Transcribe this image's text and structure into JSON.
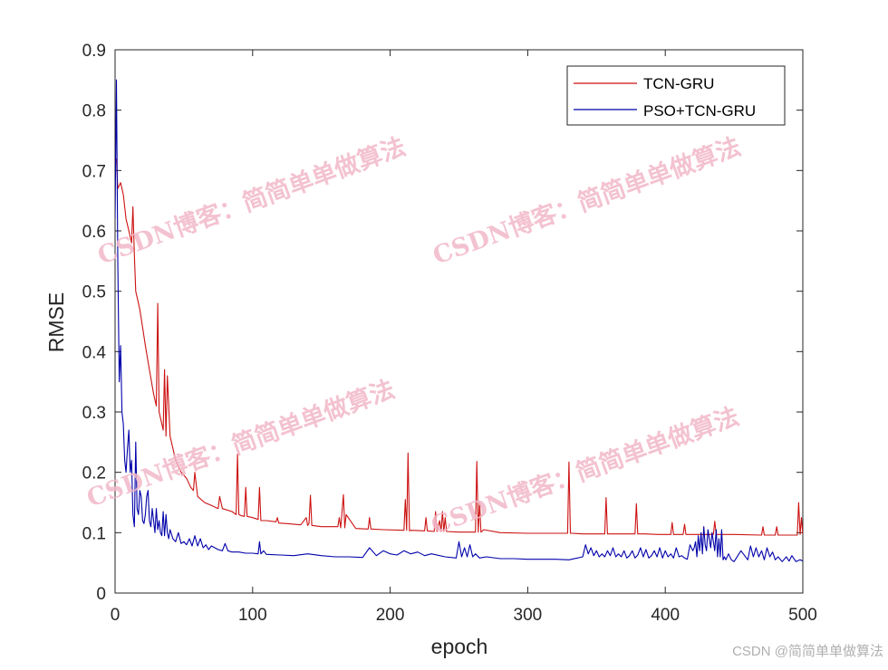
{
  "chart_data": {
    "type": "line",
    "xlabel": "epoch",
    "ylabel": "RMSE",
    "xlim": [
      0,
      500
    ],
    "ylim": [
      0,
      0.9
    ],
    "xticks": [
      0,
      100,
      200,
      300,
      400,
      500
    ],
    "yticks": [
      0,
      0.1,
      0.2,
      0.3,
      0.4,
      0.5,
      0.6,
      0.7,
      0.8,
      0.9
    ],
    "grid": false,
    "legend_position": "top-right",
    "series": [
      {
        "name": "TCN-GRU",
        "color": "#cc1111",
        "x": [
          1,
          2,
          4,
          6,
          8,
          10,
          12,
          13,
          14,
          15,
          16,
          18,
          20,
          22,
          25,
          28,
          30,
          31,
          32,
          34,
          35,
          36,
          37,
          38,
          40,
          44,
          48,
          52,
          55,
          57,
          58,
          60,
          65,
          70,
          75,
          76,
          78,
          85,
          88,
          89,
          90,
          92,
          94,
          95,
          96,
          100,
          104,
          105,
          106,
          110,
          117,
          118,
          119,
          125,
          135,
          139,
          140,
          141,
          142,
          143,
          150,
          162,
          163,
          164,
          166,
          167,
          168,
          175,
          184,
          185,
          186,
          195,
          210,
          211,
          212,
          213,
          214,
          215,
          225,
          226,
          227,
          232,
          233,
          234,
          236,
          237,
          238,
          239,
          240,
          241,
          250,
          262,
          263,
          264,
          265,
          266,
          268,
          280,
          300,
          310,
          320,
          329,
          330,
          331,
          332,
          340,
          345,
          350,
          356,
          357,
          358,
          360,
          370,
          378,
          379,
          380,
          385,
          395,
          404,
          405,
          406,
          410,
          413,
          414,
          415,
          420,
          430,
          435,
          436,
          437,
          440,
          450,
          470,
          471,
          472,
          480,
          481,
          482,
          490,
          496,
          497,
          498,
          499,
          500
        ],
        "y": [
          0.72,
          0.67,
          0.68,
          0.66,
          0.62,
          0.6,
          0.58,
          0.64,
          0.56,
          0.5,
          0.49,
          0.47,
          0.44,
          0.41,
          0.37,
          0.33,
          0.31,
          0.48,
          0.3,
          0.28,
          0.27,
          0.37,
          0.26,
          0.36,
          0.26,
          0.22,
          0.2,
          0.19,
          0.175,
          0.17,
          0.2,
          0.16,
          0.15,
          0.145,
          0.14,
          0.16,
          0.14,
          0.135,
          0.13,
          0.23,
          0.13,
          0.128,
          0.127,
          0.175,
          0.127,
          0.125,
          0.122,
          0.175,
          0.12,
          0.12,
          0.118,
          0.125,
          0.116,
          0.115,
          0.113,
          0.125,
          0.112,
          0.115,
          0.162,
          0.112,
          0.11,
          0.11,
          0.125,
          0.108,
          0.163,
          0.108,
          0.13,
          0.107,
          0.106,
          0.125,
          0.106,
          0.105,
          0.104,
          0.155,
          0.104,
          0.232,
          0.103,
          0.104,
          0.103,
          0.125,
          0.103,
          0.102,
          0.135,
          0.102,
          0.12,
          0.102,
          0.135,
          0.102,
          0.125,
          0.102,
          0.101,
          0.101,
          0.218,
          0.101,
          0.15,
          0.101,
          0.105,
          0.1,
          0.099,
          0.099,
          0.099,
          0.099,
          0.217,
          0.099,
          0.099,
          0.098,
          0.098,
          0.098,
          0.098,
          0.158,
          0.098,
          0.098,
          0.098,
          0.098,
          0.148,
          0.098,
          0.098,
          0.097,
          0.097,
          0.117,
          0.097,
          0.097,
          0.097,
          0.114,
          0.097,
          0.097,
          0.097,
          0.097,
          0.119,
          0.097,
          0.097,
          0.097,
          0.096,
          0.11,
          0.096,
          0.096,
          0.11,
          0.096,
          0.096,
          0.096,
          0.15,
          0.097,
          0.125,
          0.097
        ]
      },
      {
        "name": "PSO+TCN-GRU",
        "color": "#0000aa",
        "x": [
          0,
          1,
          2,
          3,
          4,
          5,
          6,
          7,
          8,
          9,
          10,
          11,
          12,
          13,
          14,
          15,
          16,
          17,
          18,
          19,
          20,
          21,
          22,
          23,
          24,
          25,
          26,
          27,
          28,
          29,
          30,
          31,
          32,
          33,
          34,
          35,
          36,
          37,
          38,
          39,
          40,
          42,
          44,
          46,
          48,
          50,
          52,
          54,
          56,
          58,
          60,
          62,
          64,
          66,
          68,
          70,
          75,
          78,
          80,
          82,
          85,
          90,
          95,
          100,
          104,
          105,
          106,
          108,
          110,
          120,
          130,
          140,
          150,
          160,
          170,
          180,
          185,
          190,
          195,
          200,
          205,
          210,
          215,
          220,
          225,
          230,
          240,
          248,
          250,
          252,
          254,
          256,
          258,
          260,
          262,
          265,
          270,
          280,
          290,
          300,
          310,
          320,
          330,
          340,
          342,
          344,
          346,
          348,
          350,
          352,
          354,
          356,
          358,
          360,
          362,
          364,
          366,
          368,
          370,
          372,
          374,
          376,
          378,
          380,
          382,
          384,
          386,
          388,
          390,
          392,
          394,
          396,
          398,
          400,
          402,
          404,
          406,
          408,
          410,
          412,
          414,
          416,
          418,
          420,
          421,
          422,
          423,
          424,
          425,
          426,
          427,
          428,
          429,
          430,
          431,
          432,
          433,
          434,
          435,
          436,
          437,
          438,
          439,
          440,
          441,
          442,
          443,
          444,
          446,
          448,
          450,
          455,
          460,
          462,
          464,
          466,
          468,
          470,
          472,
          474,
          476,
          478,
          480,
          482,
          485,
          488,
          490,
          492,
          495,
          498,
          500
        ],
        "y": [
          0.62,
          0.85,
          0.55,
          0.35,
          0.41,
          0.3,
          0.28,
          0.22,
          0.2,
          0.24,
          0.27,
          0.2,
          0.22,
          0.13,
          0.11,
          0.25,
          0.14,
          0.13,
          0.17,
          0.16,
          0.12,
          0.115,
          0.13,
          0.16,
          0.17,
          0.12,
          0.11,
          0.14,
          0.12,
          0.1,
          0.14,
          0.105,
          0.12,
          0.1,
          0.095,
          0.135,
          0.095,
          0.13,
          0.1,
          0.09,
          0.105,
          0.09,
          0.085,
          0.1,
          0.082,
          0.085,
          0.08,
          0.09,
          0.078,
          0.095,
          0.078,
          0.09,
          0.075,
          0.08,
          0.072,
          0.078,
          0.072,
          0.07,
          0.082,
          0.07,
          0.068,
          0.068,
          0.066,
          0.066,
          0.065,
          0.085,
          0.065,
          0.07,
          0.064,
          0.063,
          0.062,
          0.065,
          0.062,
          0.06,
          0.06,
          0.059,
          0.075,
          0.062,
          0.07,
          0.065,
          0.063,
          0.07,
          0.065,
          0.068,
          0.062,
          0.065,
          0.06,
          0.058,
          0.085,
          0.06,
          0.075,
          0.06,
          0.08,
          0.06,
          0.065,
          0.058,
          0.06,
          0.057,
          0.057,
          0.056,
          0.056,
          0.056,
          0.055,
          0.06,
          0.08,
          0.065,
          0.075,
          0.062,
          0.07,
          0.06,
          0.065,
          0.06,
          0.07,
          0.062,
          0.075,
          0.06,
          0.065,
          0.06,
          0.07,
          0.058,
          0.062,
          0.07,
          0.058,
          0.063,
          0.075,
          0.06,
          0.072,
          0.058,
          0.062,
          0.07,
          0.06,
          0.075,
          0.058,
          0.07,
          0.06,
          0.065,
          0.058,
          0.075,
          0.06,
          0.062,
          0.058,
          0.056,
          0.08,
          0.07,
          0.075,
          0.085,
          0.06,
          0.095,
          0.07,
          0.1,
          0.065,
          0.11,
          0.08,
          0.07,
          0.105,
          0.09,
          0.075,
          0.1,
          0.085,
          0.07,
          0.105,
          0.06,
          0.09,
          0.06,
          0.105,
          0.055,
          0.06,
          0.055,
          0.065,
          0.055,
          0.052,
          0.07,
          0.055,
          0.078,
          0.06,
          0.075,
          0.06,
          0.07,
          0.055,
          0.075,
          0.06,
          0.068,
          0.055,
          0.06,
          0.052,
          0.06,
          0.053,
          0.062,
          0.052,
          0.055,
          0.053
        ]
      }
    ]
  },
  "watermarks": [
    "CSDN博客：简简单单做算法",
    "CSDN博客：简简单单做算法",
    "CSDN博客：简简单单做算法",
    "CSDN博客：简简单单做算法"
  ],
  "credit": "CSDN @简简单单做算法"
}
